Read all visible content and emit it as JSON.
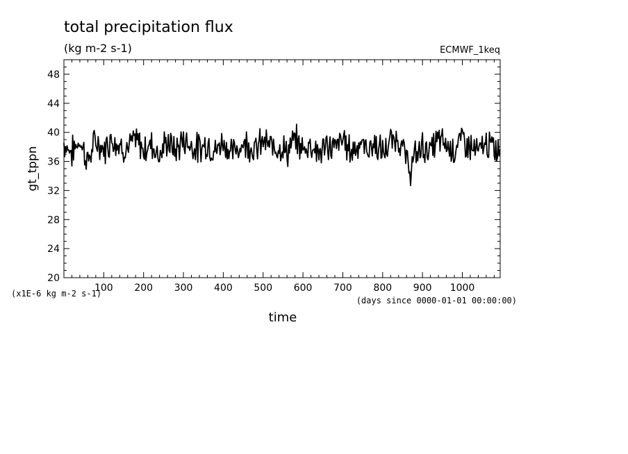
{
  "chart_data": {
    "type": "line",
    "title": "total precipitation flux",
    "subtitle": "(kg m-2 s-1)",
    "source_label": "ECMWF_1keq",
    "ylabel": "gt_tppn",
    "xlabel": "time",
    "y_unit_note": "(x1E-6 kg m-2 s-1)",
    "x_unit_note": "(days since 0000-01-01 00:00:00)",
    "xlim": [
      0,
      1095
    ],
    "ylim": [
      20,
      50
    ],
    "x_ticks": [
      100,
      200,
      300,
      400,
      500,
      600,
      700,
      800,
      900,
      1000
    ],
    "y_ticks": [
      20,
      24,
      28,
      32,
      36,
      40,
      44,
      48
    ],
    "series": [
      {
        "line_color": "#000000",
        "x": [
          0,
          20,
          40,
          60,
          80,
          100,
          120,
          140,
          160,
          180,
          200,
          220,
          240,
          260,
          280,
          300,
          320,
          340,
          360,
          380,
          400,
          420,
          440,
          460,
          480,
          500,
          520,
          540,
          560,
          580,
          600,
          620,
          640,
          660,
          680,
          700,
          720,
          740,
          760,
          780,
          800,
          820,
          840,
          850,
          860,
          870,
          880,
          900,
          920,
          940,
          960,
          980,
          1000,
          1020,
          1040,
          1060,
          1080,
          1095
        ],
        "y": [
          38.5,
          37.2,
          39.0,
          36.0,
          38.8,
          37.5,
          39.3,
          38.2,
          37.8,
          38.9,
          37.6,
          38.5,
          36.9,
          38.8,
          37.4,
          39.0,
          38.2,
          37.7,
          38.6,
          37.3,
          38.9,
          37.0,
          38.1,
          38.7,
          37.5,
          38.8,
          37.9,
          38.3,
          37.2,
          39.0,
          37.6,
          38.5,
          37.1,
          38.2,
          37.8,
          39.1,
          37.4,
          38.6,
          37.7,
          38.4,
          37.1,
          38.6,
          39.2,
          38.0,
          36.0,
          34.8,
          36.5,
          38.1,
          37.4,
          39.0,
          38.2,
          37.7,
          39.1,
          38.0,
          37.2,
          38.5,
          37.6,
          37.9
        ]
      }
    ]
  }
}
